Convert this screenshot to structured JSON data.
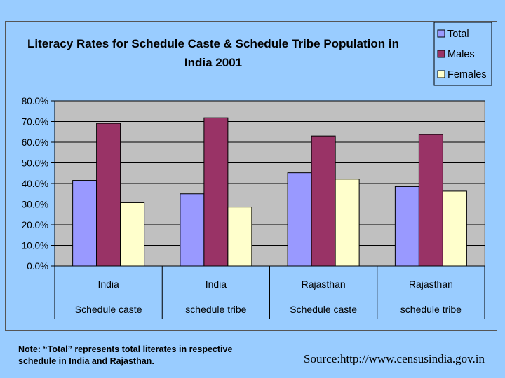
{
  "chart_data": {
    "type": "bar",
    "title_lines": [
      "Literacy Rates for  Schedule Caste & Schedule Tribe Population in",
      "India 2001"
    ],
    "categories": [
      [
        "India",
        "Schedule caste"
      ],
      [
        "India",
        "schedule tribe"
      ],
      [
        "Rajasthan",
        "Schedule caste"
      ],
      [
        "Rajasthan",
        "schedule tribe"
      ]
    ],
    "series": [
      {
        "name": "Total",
        "color": "#9999ff",
        "values": [
          41.5,
          35.0,
          45.2,
          38.5
        ]
      },
      {
        "name": "Males",
        "color": "#993366",
        "values": [
          69.1,
          71.8,
          63.0,
          63.7
        ]
      },
      {
        "name": "Females",
        "color": "#ffffcc",
        "values": [
          30.7,
          28.6,
          42.1,
          36.3
        ]
      }
    ],
    "ylim": [
      0,
      80
    ],
    "y_ticks": [
      "0.0%",
      "10.0%",
      "20.0%",
      "30.0%",
      "40.0%",
      "50.0%",
      "60.0%",
      "70.0%",
      "80.0%"
    ],
    "plot_background": "#c0c0c0",
    "grid": true,
    "legend_position": "top-right"
  },
  "footer": {
    "note": "Note: “Total” represents total literates in respective schedule in India and Rajasthan.",
    "source": "Source:http://www.censusindia.gov.in"
  }
}
